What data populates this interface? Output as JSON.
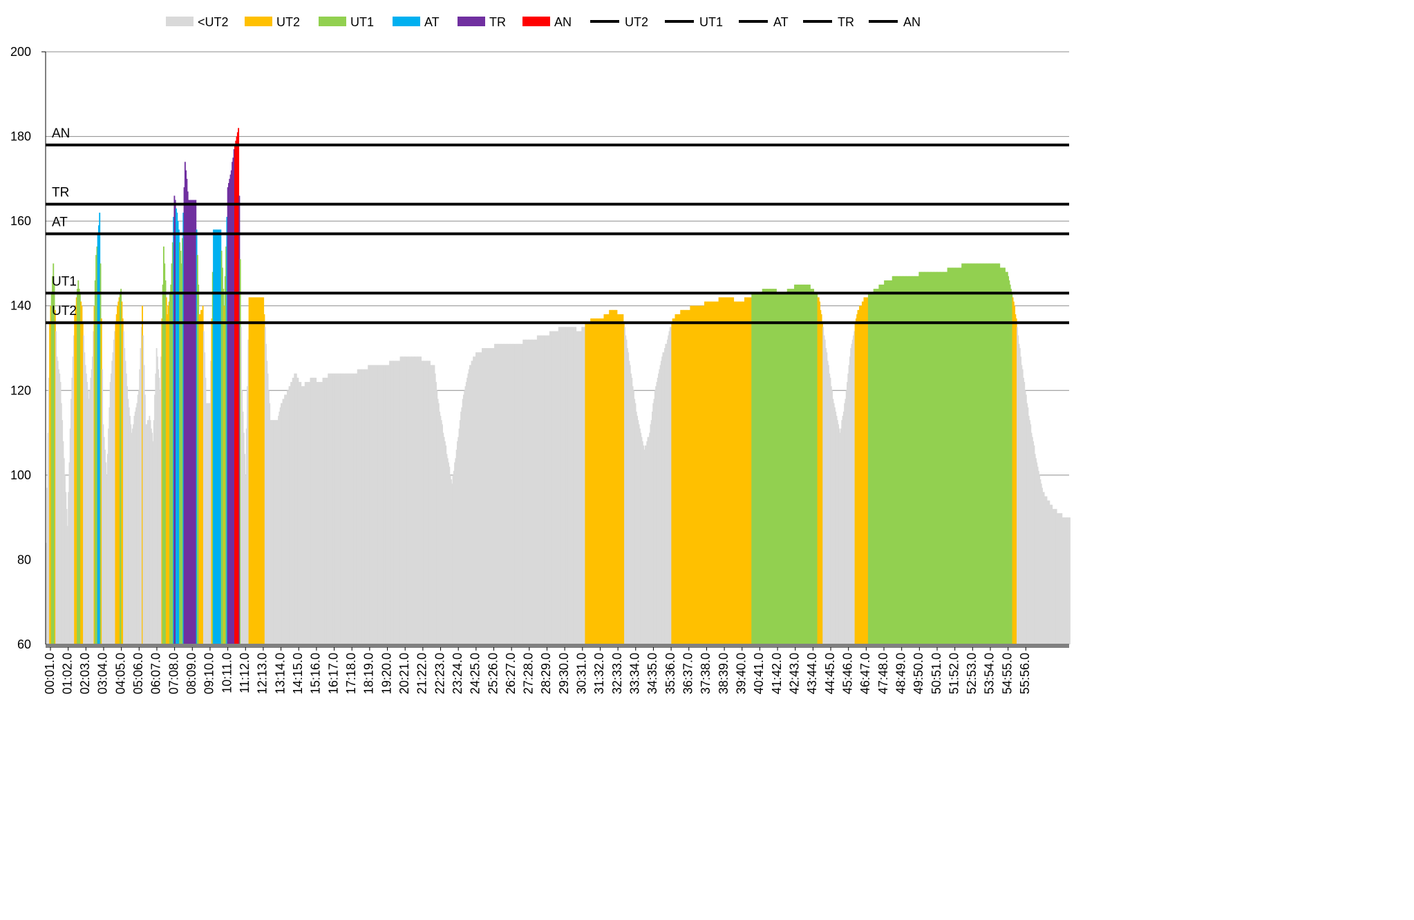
{
  "chart_data": {
    "type": "bar",
    "title": "",
    "xlabel": "",
    "ylabel": "",
    "ylim": [
      60,
      200
    ],
    "yticks": [
      60,
      80,
      100,
      120,
      140,
      160,
      180,
      200
    ],
    "grid": "horizontal",
    "legend_position": "top",
    "x_range_minutes": [
      0,
      57.5
    ],
    "xtick_labels": [
      "00:01.0",
      "01:02.0",
      "02:03.0",
      "03:04.0",
      "04:05.0",
      "05:06.0",
      "06:07.0",
      "07:08.0",
      "08:09.0",
      "09:10.0",
      "10:11.0",
      "11:12.0",
      "12:13.0",
      "13:14.0",
      "14:15.0",
      "15:16.0",
      "16:17.0",
      "17:18.0",
      "18:19.0",
      "19:20.0",
      "20:21.0",
      "21:22.0",
      "22:23.0",
      "23:24.0",
      "24:25.0",
      "25:26.0",
      "26:27.0",
      "27:28.0",
      "28:29.0",
      "29:30.0",
      "30:31.0",
      "31:32.0",
      "32:33.0",
      "33:34.0",
      "34:35.0",
      "35:36.0",
      "36:37.0",
      "37:38.0",
      "38:39.0",
      "39:40.0",
      "40:41.0",
      "41:42.0",
      "42:43.0",
      "43:44.0",
      "44:45.0",
      "45:46.0",
      "46:47.0",
      "47:48.0",
      "48:49.0",
      "49:50.0",
      "50:51.0",
      "51:52.0",
      "52:53.0",
      "53:54.0",
      "54:55.0",
      "55:56.0"
    ],
    "legend": [
      {
        "label": "<UT2",
        "kind": "bar",
        "color": "#d9d9d9"
      },
      {
        "label": "UT2",
        "kind": "bar",
        "color": "#ffc000"
      },
      {
        "label": "UT1",
        "kind": "bar",
        "color": "#92d050"
      },
      {
        "label": "AT",
        "kind": "bar",
        "color": "#00b0f0"
      },
      {
        "label": "TR",
        "kind": "bar",
        "color": "#7030a0"
      },
      {
        "label": "AN",
        "kind": "bar",
        "color": "#ff0000"
      },
      {
        "label": "UT2",
        "kind": "line",
        "color": "#000000"
      },
      {
        "label": "UT1",
        "kind": "line",
        "color": "#000000"
      },
      {
        "label": "AT",
        "kind": "line",
        "color": "#000000"
      },
      {
        "label": "TR",
        "kind": "line",
        "color": "#000000"
      },
      {
        "label": "AN",
        "kind": "line",
        "color": "#000000"
      }
    ],
    "zone_colors": {
      "<UT2": "#d9d9d9",
      "UT2": "#ffc000",
      "UT1": "#92d050",
      "AT": "#00b0f0",
      "TR": "#7030a0",
      "AN": "#ff0000"
    },
    "thresholds": [
      {
        "name": "UT2",
        "value": 136
      },
      {
        "name": "UT1",
        "value": 143
      },
      {
        "name": "AT",
        "value": 157
      },
      {
        "name": "TR",
        "value": 164
      },
      {
        "name": "AN",
        "value": 178
      }
    ],
    "heart_rate_profile": [
      [
        0.0,
        84
      ],
      [
        0.2,
        136
      ],
      [
        0.4,
        150
      ],
      [
        0.6,
        128
      ],
      [
        0.8,
        122
      ],
      [
        1.0,
        104
      ],
      [
        1.2,
        88
      ],
      [
        1.4,
        118
      ],
      [
        1.6,
        138
      ],
      [
        1.8,
        146
      ],
      [
        2.0,
        140
      ],
      [
        2.2,
        126
      ],
      [
        2.4,
        118
      ],
      [
        2.6,
        128
      ],
      [
        2.8,
        152
      ],
      [
        3.0,
        162
      ],
      [
        3.2,
        112
      ],
      [
        3.4,
        100
      ],
      [
        3.6,
        122
      ],
      [
        3.8,
        132
      ],
      [
        4.0,
        140
      ],
      [
        4.2,
        144
      ],
      [
        4.4,
        130
      ],
      [
        4.6,
        118
      ],
      [
        4.8,
        110
      ],
      [
        5.0,
        115
      ],
      [
        5.2,
        120
      ],
      [
        5.4,
        140
      ],
      [
        5.6,
        112
      ],
      [
        5.8,
        114
      ],
      [
        6.0,
        108
      ],
      [
        6.2,
        130
      ],
      [
        6.4,
        120
      ],
      [
        6.6,
        154
      ],
      [
        6.8,
        138
      ],
      [
        7.0,
        145
      ],
      [
        7.2,
        166
      ],
      [
        7.4,
        160
      ],
      [
        7.6,
        150
      ],
      [
        7.8,
        174
      ],
      [
        8.0,
        165
      ],
      [
        8.4,
        165
      ],
      [
        8.6,
        138
      ],
      [
        8.8,
        140
      ],
      [
        9.0,
        117
      ],
      [
        9.2,
        117
      ],
      [
        9.4,
        158
      ],
      [
        9.8,
        158
      ],
      [
        10.0,
        140
      ],
      [
        10.2,
        168
      ],
      [
        10.4,
        172
      ],
      [
        10.6,
        178
      ],
      [
        10.8,
        182
      ],
      [
        11.0,
        120
      ],
      [
        11.2,
        100
      ],
      [
        11.4,
        142
      ],
      [
        12.2,
        142
      ],
      [
        12.6,
        113
      ],
      [
        13.0,
        113
      ],
      [
        13.2,
        117
      ],
      [
        13.6,
        120
      ],
      [
        14.0,
        124
      ],
      [
        14.4,
        121
      ],
      [
        15.0,
        123
      ],
      [
        15.4,
        122
      ],
      [
        16.0,
        124
      ],
      [
        16.6,
        124
      ],
      [
        17.2,
        124
      ],
      [
        17.8,
        125
      ],
      [
        18.4,
        126
      ],
      [
        19.0,
        126
      ],
      [
        19.6,
        127
      ],
      [
        20.2,
        128
      ],
      [
        20.8,
        128
      ],
      [
        21.4,
        127
      ],
      [
        21.8,
        126
      ],
      [
        22.0,
        118
      ],
      [
        22.4,
        108
      ],
      [
        22.8,
        98
      ],
      [
        23.0,
        104
      ],
      [
        23.4,
        118
      ],
      [
        23.8,
        126
      ],
      [
        24.2,
        129
      ],
      [
        24.8,
        130
      ],
      [
        25.6,
        131
      ],
      [
        26.4,
        131
      ],
      [
        27.2,
        132
      ],
      [
        28.0,
        133
      ],
      [
        28.6,
        134
      ],
      [
        29.0,
        135
      ],
      [
        29.6,
        135
      ],
      [
        30.0,
        134
      ],
      [
        30.4,
        136
      ],
      [
        30.8,
        137
      ],
      [
        31.2,
        137
      ],
      [
        31.8,
        139
      ],
      [
        32.4,
        138
      ],
      [
        32.8,
        126
      ],
      [
        33.2,
        114
      ],
      [
        33.6,
        106
      ],
      [
        33.9,
        110
      ],
      [
        34.2,
        120
      ],
      [
        34.6,
        128
      ],
      [
        34.9,
        132
      ],
      [
        35.2,
        137
      ],
      [
        35.8,
        139
      ],
      [
        36.6,
        140
      ],
      [
        37.4,
        141
      ],
      [
        38.2,
        142
      ],
      [
        39.0,
        141
      ],
      [
        39.8,
        143
      ],
      [
        40.6,
        144
      ],
      [
        41.4,
        143
      ],
      [
        42.2,
        145
      ],
      [
        42.8,
        145
      ],
      [
        43.4,
        142
      ],
      [
        43.8,
        130
      ],
      [
        44.2,
        118
      ],
      [
        44.6,
        110
      ],
      [
        44.9,
        118
      ],
      [
        45.2,
        130
      ],
      [
        45.6,
        139
      ],
      [
        46.0,
        142
      ],
      [
        46.6,
        144
      ],
      [
        47.2,
        146
      ],
      [
        47.8,
        147
      ],
      [
        48.6,
        147
      ],
      [
        49.4,
        148
      ],
      [
        50.2,
        148
      ],
      [
        51.0,
        149
      ],
      [
        51.8,
        150
      ],
      [
        52.6,
        150
      ],
      [
        53.4,
        150
      ],
      [
        54.0,
        148
      ],
      [
        54.4,
        140
      ],
      [
        54.8,
        126
      ],
      [
        55.2,
        114
      ],
      [
        55.6,
        104
      ],
      [
        56.0,
        96
      ],
      [
        56.6,
        92
      ],
      [
        57.2,
        90
      ],
      [
        57.5,
        90
      ]
    ]
  }
}
